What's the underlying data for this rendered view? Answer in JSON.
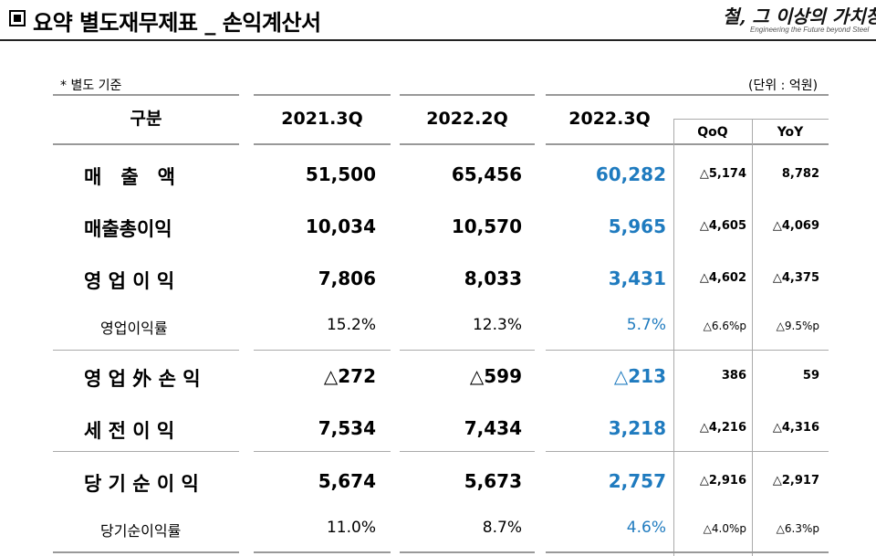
{
  "title": "요약 별도재무제표 _ 손익계산서",
  "logo": {
    "script": "철, 그 이상의 가치창조",
    "tagline": "Engineering the Future beyond Steel"
  },
  "note": "* 별도 기준",
  "unit": "(단위 : 억원)",
  "headers": {
    "category": "구분",
    "col1": "2021.3Q",
    "col2": "2022.2Q",
    "col3": "2022.3Q",
    "qoq": "QoQ",
    "yoy": "YoY"
  },
  "rows": [
    {
      "label": "매　출　액",
      "v1": "51,500",
      "v2": "65,456",
      "v3": "60,282",
      "qoq": "△5,174",
      "yoy": "8,782",
      "kind": "big"
    },
    {
      "label": "매출총이익",
      "v1": "10,034",
      "v2": "10,570",
      "v3": "5,965",
      "qoq": "△4,605",
      "yoy": "△4,069",
      "kind": "big"
    },
    {
      "label": "영 업 이 익",
      "v1": "7,806",
      "v2": "8,033",
      "v3": "3,431",
      "qoq": "△4,602",
      "yoy": "△4,375",
      "kind": "big"
    },
    {
      "label": "영업이익률",
      "v1": "15.2%",
      "v2": "12.3%",
      "v3": "5.7%",
      "qoq": "△6.6%p",
      "yoy": "△9.5%p",
      "kind": "small"
    },
    {
      "label": "영 업 外 손 익",
      "v1": "△272",
      "v2": "△599",
      "v3": "△213",
      "qoq": "386",
      "yoy": "59",
      "kind": "big"
    },
    {
      "label": "세 전 이 익",
      "v1": "7,534",
      "v2": "7,434",
      "v3": "3,218",
      "qoq": "△4,216",
      "yoy": "△4,316",
      "kind": "big"
    },
    {
      "label": "당 기 순 이 익",
      "v1": "5,674",
      "v2": "5,673",
      "v3": "2,757",
      "qoq": "△2,916",
      "yoy": "△2,917",
      "kind": "big"
    },
    {
      "label": "당기순이익률",
      "v1": "11.0%",
      "v2": "8.7%",
      "v3": "4.6%",
      "qoq": "△4.0%p",
      "yoy": "△6.3%p",
      "kind": "small"
    }
  ]
}
